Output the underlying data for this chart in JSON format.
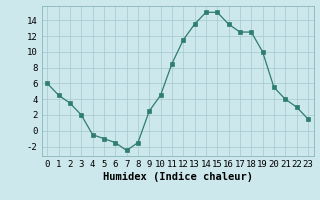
{
  "x": [
    0,
    1,
    2,
    3,
    4,
    5,
    6,
    7,
    8,
    9,
    10,
    11,
    12,
    13,
    14,
    15,
    16,
    17,
    18,
    19,
    20,
    21,
    22,
    23
  ],
  "y": [
    6,
    4.5,
    3.5,
    2,
    -0.5,
    -1,
    -1.5,
    -2.5,
    -1.5,
    2.5,
    4.5,
    8.5,
    11.5,
    13.5,
    15,
    15,
    13.5,
    12.5,
    12.5,
    10,
    5.5,
    4,
    3,
    1.5
  ],
  "line_color": "#2e7d6e",
  "marker": "s",
  "marker_size": 2.5,
  "bg_color": "#cce8ec",
  "grid_color": "#aacdd4",
  "xlabel": "Humidex (Indice chaleur)",
  "xlim": [
    -0.5,
    23.5
  ],
  "ylim": [
    -3.2,
    15.8
  ],
  "yticks": [
    -2,
    0,
    2,
    4,
    6,
    8,
    10,
    12,
    14
  ],
  "xticks": [
    0,
    1,
    2,
    3,
    4,
    5,
    6,
    7,
    8,
    9,
    10,
    11,
    12,
    13,
    14,
    15,
    16,
    17,
    18,
    19,
    20,
    21,
    22,
    23
  ],
  "tick_fontsize": 6.5,
  "xlabel_fontsize": 7.5
}
